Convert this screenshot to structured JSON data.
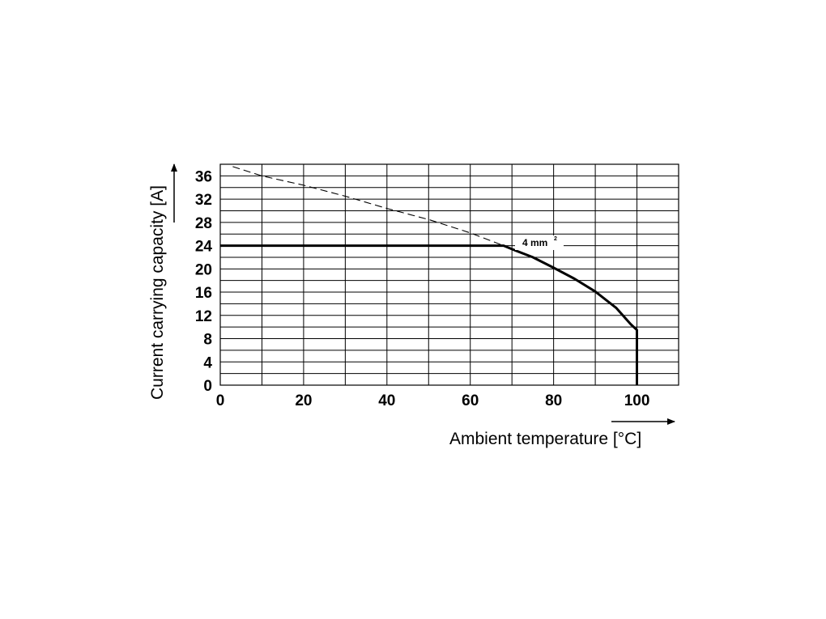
{
  "chart_data": {
    "type": "line",
    "xlabel": "Ambient temperature [°C]",
    "ylabel": "Current carrying capacity [A]",
    "xlim": [
      0,
      110
    ],
    "ylim": [
      0,
      38
    ],
    "x_ticks": [
      "0",
      "20",
      "40",
      "60",
      "80",
      "100"
    ],
    "y_ticks": [
      "0",
      "4",
      "8",
      "12",
      "16",
      "20",
      "24",
      "28",
      "32",
      "36"
    ],
    "grid": true,
    "series": [
      {
        "name": "4 mm²",
        "label_base": "4 mm",
        "label_sup": "2",
        "style": "solid",
        "x": [
          0,
          68,
          70,
          75,
          80,
          85,
          90,
          95,
          98.5,
          100,
          100
        ],
        "y": [
          24,
          24,
          23.4,
          22.0,
          20.2,
          18.3,
          16.1,
          13.3,
          10.5,
          9.5,
          0
        ]
      },
      {
        "name": "",
        "style": "dashed",
        "x": [
          3,
          10,
          20,
          30,
          40,
          50,
          60,
          68
        ],
        "y": [
          37.6,
          36.0,
          34.4,
          32.5,
          30.4,
          28.5,
          26.2,
          24
        ]
      }
    ]
  }
}
